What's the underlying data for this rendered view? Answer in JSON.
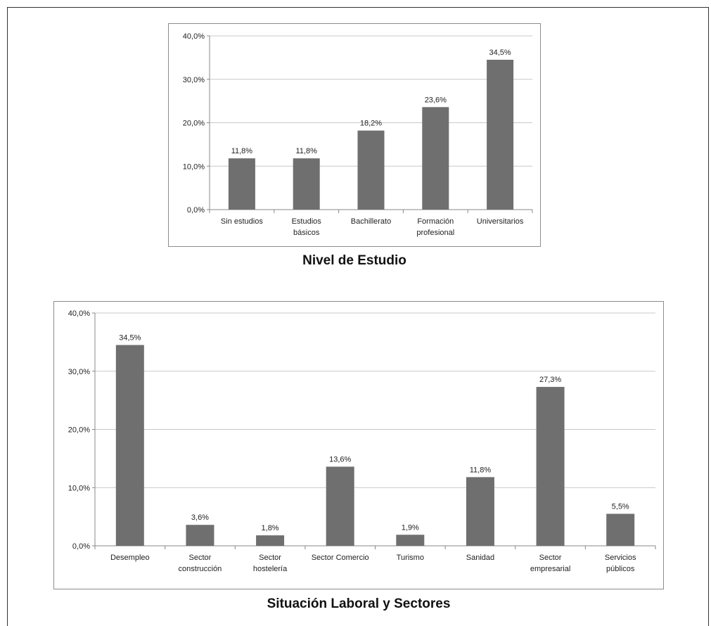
{
  "chart_data": [
    {
      "type": "bar",
      "title": "Nivel de Estudio",
      "categories": [
        [
          "Sin estudios"
        ],
        [
          "Estudios",
          "básicos"
        ],
        [
          "Bachillerato"
        ],
        [
          "Formación",
          "profesional"
        ],
        [
          "Universitarios"
        ]
      ],
      "values": [
        11.8,
        11.8,
        18.2,
        23.6,
        34.5
      ],
      "value_labels": [
        "11,8%",
        "11,8%",
        "18,2%",
        "23,6%",
        "34,5%"
      ],
      "yticks": [
        "0,0%",
        "10,0%",
        "20,0%",
        "30,0%",
        "40,0%"
      ],
      "ylim": [
        0,
        40
      ],
      "grid": true,
      "bar_color": "#6f6f6f"
    },
    {
      "type": "bar",
      "title": "Situación Laboral y Sectores",
      "categories": [
        [
          "Desempleo"
        ],
        [
          "Sector",
          "construcción"
        ],
        [
          "Sector",
          "hostelería"
        ],
        [
          "Sector Comercio"
        ],
        [
          "Turismo"
        ],
        [
          "Sanidad"
        ],
        [
          "Sector",
          "empresarial"
        ],
        [
          "Servicios",
          "públicos"
        ]
      ],
      "values": [
        34.5,
        3.6,
        1.8,
        13.6,
        1.9,
        11.8,
        27.3,
        5.5
      ],
      "value_labels": [
        "34,5%",
        "3,6%",
        "1,8%",
        "13,6%",
        "1,9%",
        "11,8%",
        "27,3%",
        "5,5%"
      ],
      "yticks": [
        "0,0%",
        "10,0%",
        "20,0%",
        "30,0%",
        "40,0%"
      ],
      "ylim": [
        0,
        40
      ],
      "grid": true,
      "bar_color": "#6f6f6f"
    }
  ]
}
